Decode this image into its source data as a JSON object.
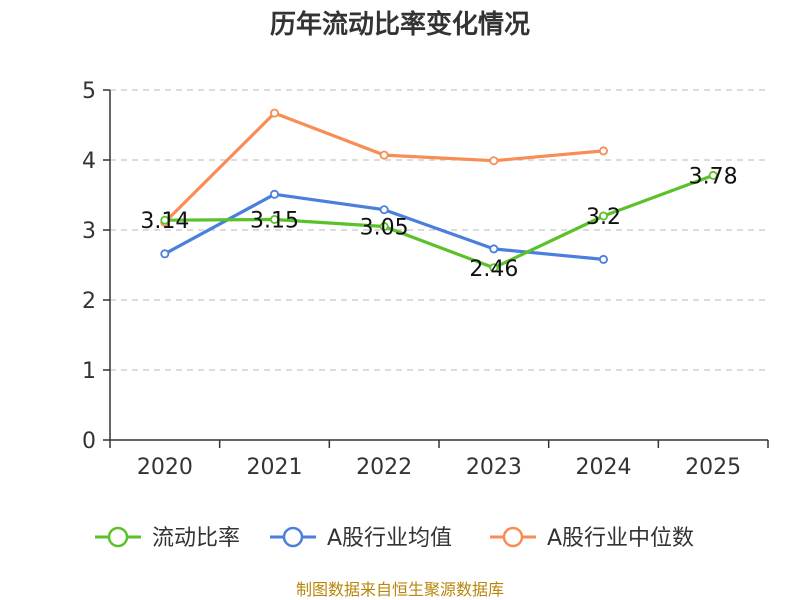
{
  "chart_data": {
    "type": "line",
    "title": "历年流动比率变化情况",
    "categories": [
      "2020",
      "2021",
      "2022",
      "2023",
      "2024",
      "2025"
    ],
    "ylim": [
      0,
      5
    ],
    "yticks": [
      "0",
      "1",
      "2",
      "3",
      "4",
      "5"
    ],
    "grid": true,
    "legend_position": "bottom",
    "series": [
      {
        "name": "流动比率",
        "color": "#5bc12a",
        "values": [
          3.14,
          3.15,
          3.05,
          2.46,
          3.2,
          3.78
        ],
        "labels": [
          "3.14",
          "3.15",
          "3.05",
          "2.46",
          "3.2",
          "3.78"
        ]
      },
      {
        "name": "A股行业均值",
        "color": "#4a7fdc",
        "values": [
          2.66,
          3.51,
          3.29,
          2.73,
          2.58,
          null
        ]
      },
      {
        "name": "A股行业中位数",
        "color": "#f88d55",
        "values": [
          3.11,
          4.67,
          4.07,
          3.99,
          4.13,
          null
        ]
      }
    ]
  },
  "footer": {
    "source": "制图数据来自恒生聚源数据库"
  }
}
